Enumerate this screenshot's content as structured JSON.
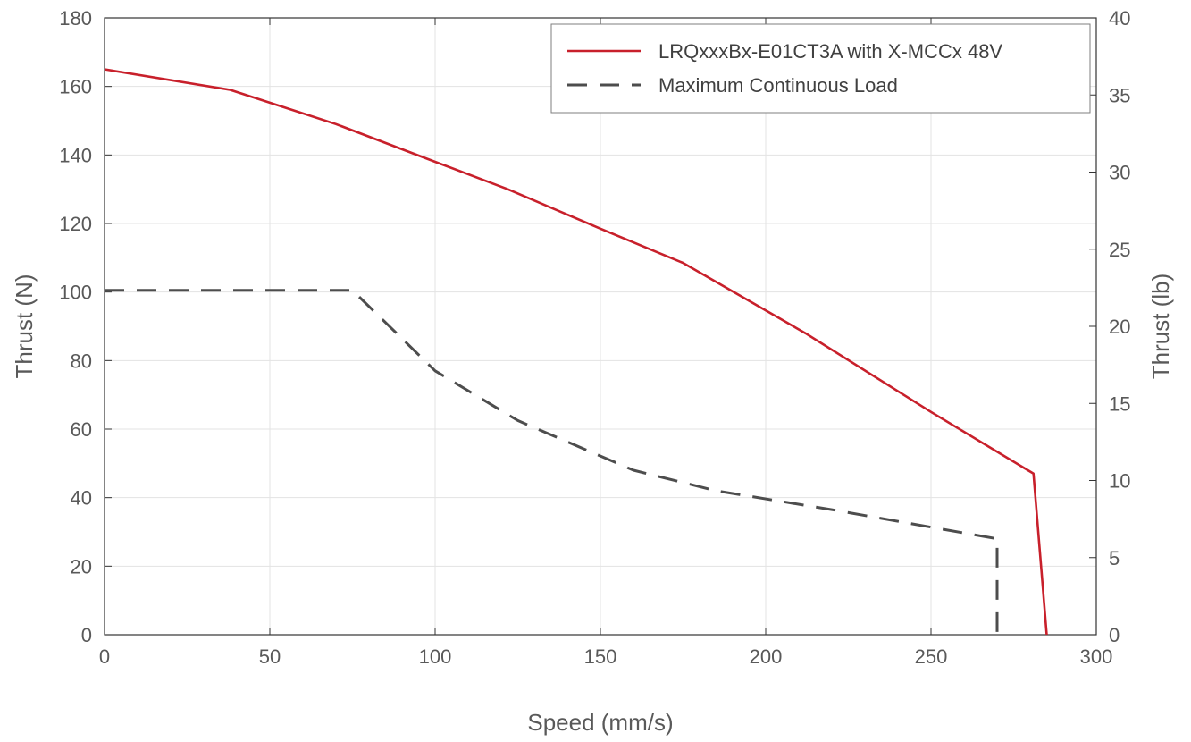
{
  "chart_data": {
    "type": "line",
    "xlabel": "Speed (mm/s)",
    "ylabel": "Thrust (N)",
    "ylabel_right": "Thrust (lb)",
    "xlim": [
      0,
      300
    ],
    "ylim": [
      0,
      180
    ],
    "ylim_right": [
      0,
      40
    ],
    "x_ticks": [
      0,
      50,
      100,
      150,
      200,
      250,
      300
    ],
    "y_ticks": [
      0,
      20,
      40,
      60,
      80,
      100,
      120,
      140,
      160,
      180
    ],
    "y_ticks_right": [
      0,
      5,
      10,
      15,
      20,
      25,
      30,
      35,
      40
    ],
    "grid": true,
    "legend_position": "top-right",
    "series": [
      {
        "name": "LRQxxxBx-E01CT3A with X-MCCx 48V",
        "color": "#c8202b",
        "style": "solid",
        "x": [
          0,
          38,
          70,
          100,
          122,
          150,
          175,
          212,
          250,
          281,
          285
        ],
        "y": [
          165,
          159,
          149,
          138,
          130,
          118.5,
          108.5,
          88,
          65,
          47,
          0
        ]
      },
      {
        "name": "Maximum Continuous Load",
        "color": "#4d4d4d",
        "style": "dashed",
        "x": [
          0,
          75,
          100,
          125,
          160,
          185,
          220,
          270,
          270
        ],
        "y": [
          100.5,
          100.5,
          77,
          62.5,
          48,
          42,
          36.5,
          28,
          0
        ]
      }
    ]
  }
}
